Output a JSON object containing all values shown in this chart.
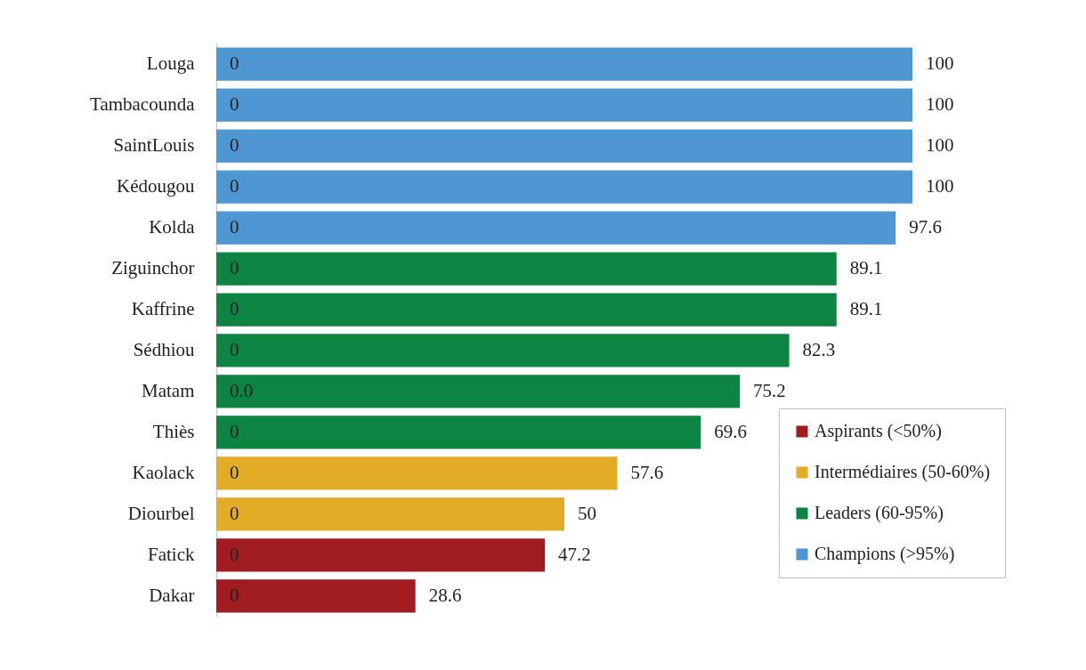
{
  "chart_data": {
    "type": "bar",
    "orientation": "horizontal",
    "categories": [
      "Louga",
      "Tambacounda",
      "SaintLouis",
      "Kédougou",
      "Kolda",
      "Ziguinchor",
      "Kaffrine",
      "Sédhiou",
      "Matam",
      "Thiès",
      "Kaolack",
      "Diourbel",
      "Fatick",
      "Dakar"
    ],
    "tick_labels": "y",
    "legend": "bottom right",
    "series": [
      {
        "name": "Aspirants (<50%)",
        "color": "#a01c20",
        "values": [
          0,
          0,
          0,
          0,
          0,
          0,
          0,
          0,
          0,
          0,
          0,
          0,
          47.2,
          28.6
        ],
        "value_labels": [
          "0",
          "0",
          "0",
          "0",
          "0",
          "0",
          "0",
          "0",
          "0.0",
          "0",
          "0",
          "0",
          "47.2",
          "28.6"
        ]
      },
      {
        "name": "Intermédiaires (50-60%)",
        "color": "#e2ac26",
        "values": [
          0,
          0,
          0,
          0,
          0,
          0,
          0,
          0,
          0,
          0,
          57.6,
          50,
          0,
          0
        ],
        "value_labels": [
          null,
          null,
          null,
          null,
          null,
          null,
          null,
          null,
          null,
          null,
          "57.6",
          "50",
          "0",
          "0"
        ]
      },
      {
        "name": "Leaders (60-95%)",
        "color": "#0e8443",
        "values": [
          0,
          0,
          0,
          0,
          0,
          89.1,
          89.1,
          82.3,
          75.2,
          69.6,
          0,
          0,
          0,
          0
        ],
        "value_labels": [
          null,
          null,
          null,
          null,
          null,
          "89.1",
          "89.1",
          "82.3",
          "75.2",
          "69.6",
          null,
          null,
          null,
          null
        ]
      },
      {
        "name": "Champions (>95%)",
        "color": "#4f97d3",
        "values": [
          100,
          100,
          100,
          100,
          97.6,
          0,
          0,
          0,
          0,
          0,
          0,
          0,
          0,
          0
        ],
        "value_labels": [
          "100",
          "100",
          "100",
          "100",
          "97.6",
          null,
          null,
          null,
          null,
          null,
          null,
          null,
          null,
          null
        ]
      }
    ]
  }
}
